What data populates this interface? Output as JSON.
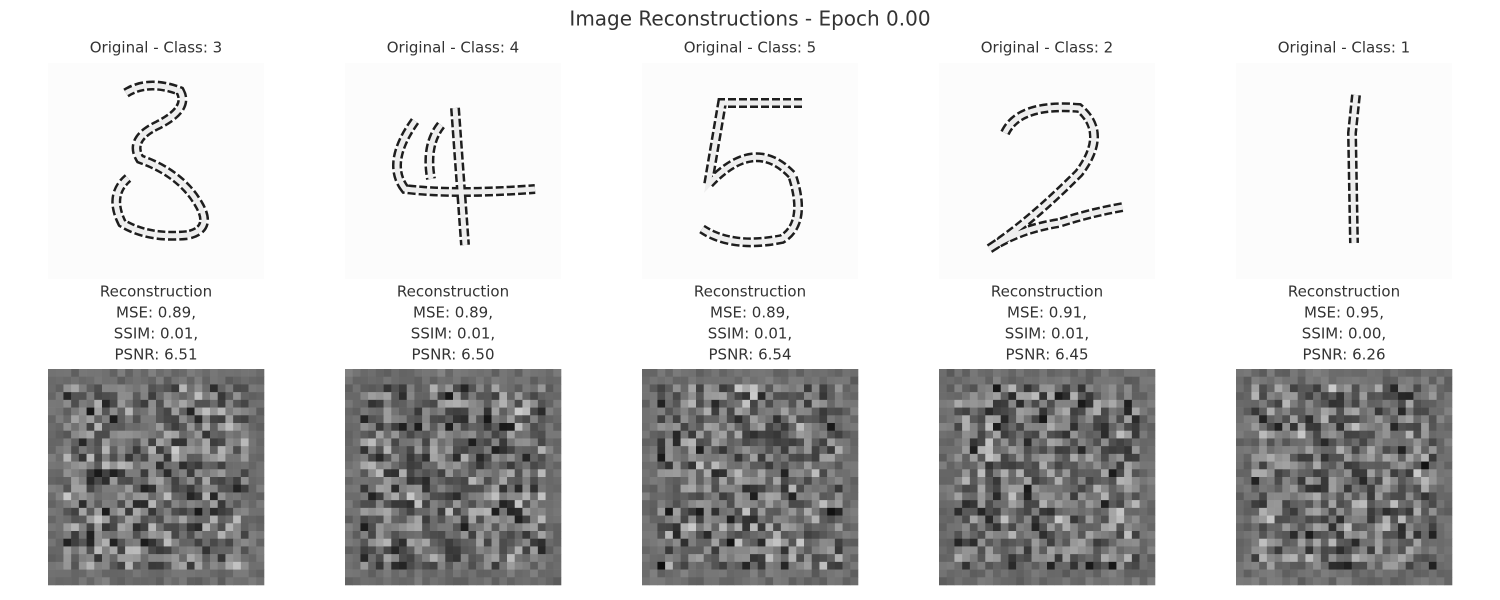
{
  "header": {
    "title": "Image Reconstructions - Epoch 0.00"
  },
  "panels": [
    {
      "original_title": "Original - Class: 3",
      "reconstruction_title": "Reconstruction",
      "metrics": [
        "MSE: 0.89,",
        "SSIM: 0.01,",
        "PSNR: 6.51"
      ]
    },
    {
      "original_title": "Original - Class: 4",
      "reconstruction_title": "Reconstruction",
      "metrics": [
        "MSE: 0.89,",
        "SSIM: 0.01,",
        "PSNR: 6.50"
      ]
    },
    {
      "original_title": "Original - Class: 5",
      "reconstruction_title": "Reconstruction",
      "metrics": [
        "MSE: 0.89,",
        "SSIM: 0.01,",
        "PSNR: 6.54"
      ]
    },
    {
      "original_title": "Original - Class: 2",
      "reconstruction_title": "Reconstruction",
      "metrics": [
        "MSE: 0.91,",
        "SSIM: 0.01,",
        "PSNR: 6.45"
      ]
    },
    {
      "original_title": "Original - Class: 1",
      "reconstruction_title": "Reconstruction",
      "metrics": [
        "MSE: 0.95,",
        "SSIM: 0.00,",
        "PSNR: 6.26"
      ]
    }
  ]
}
